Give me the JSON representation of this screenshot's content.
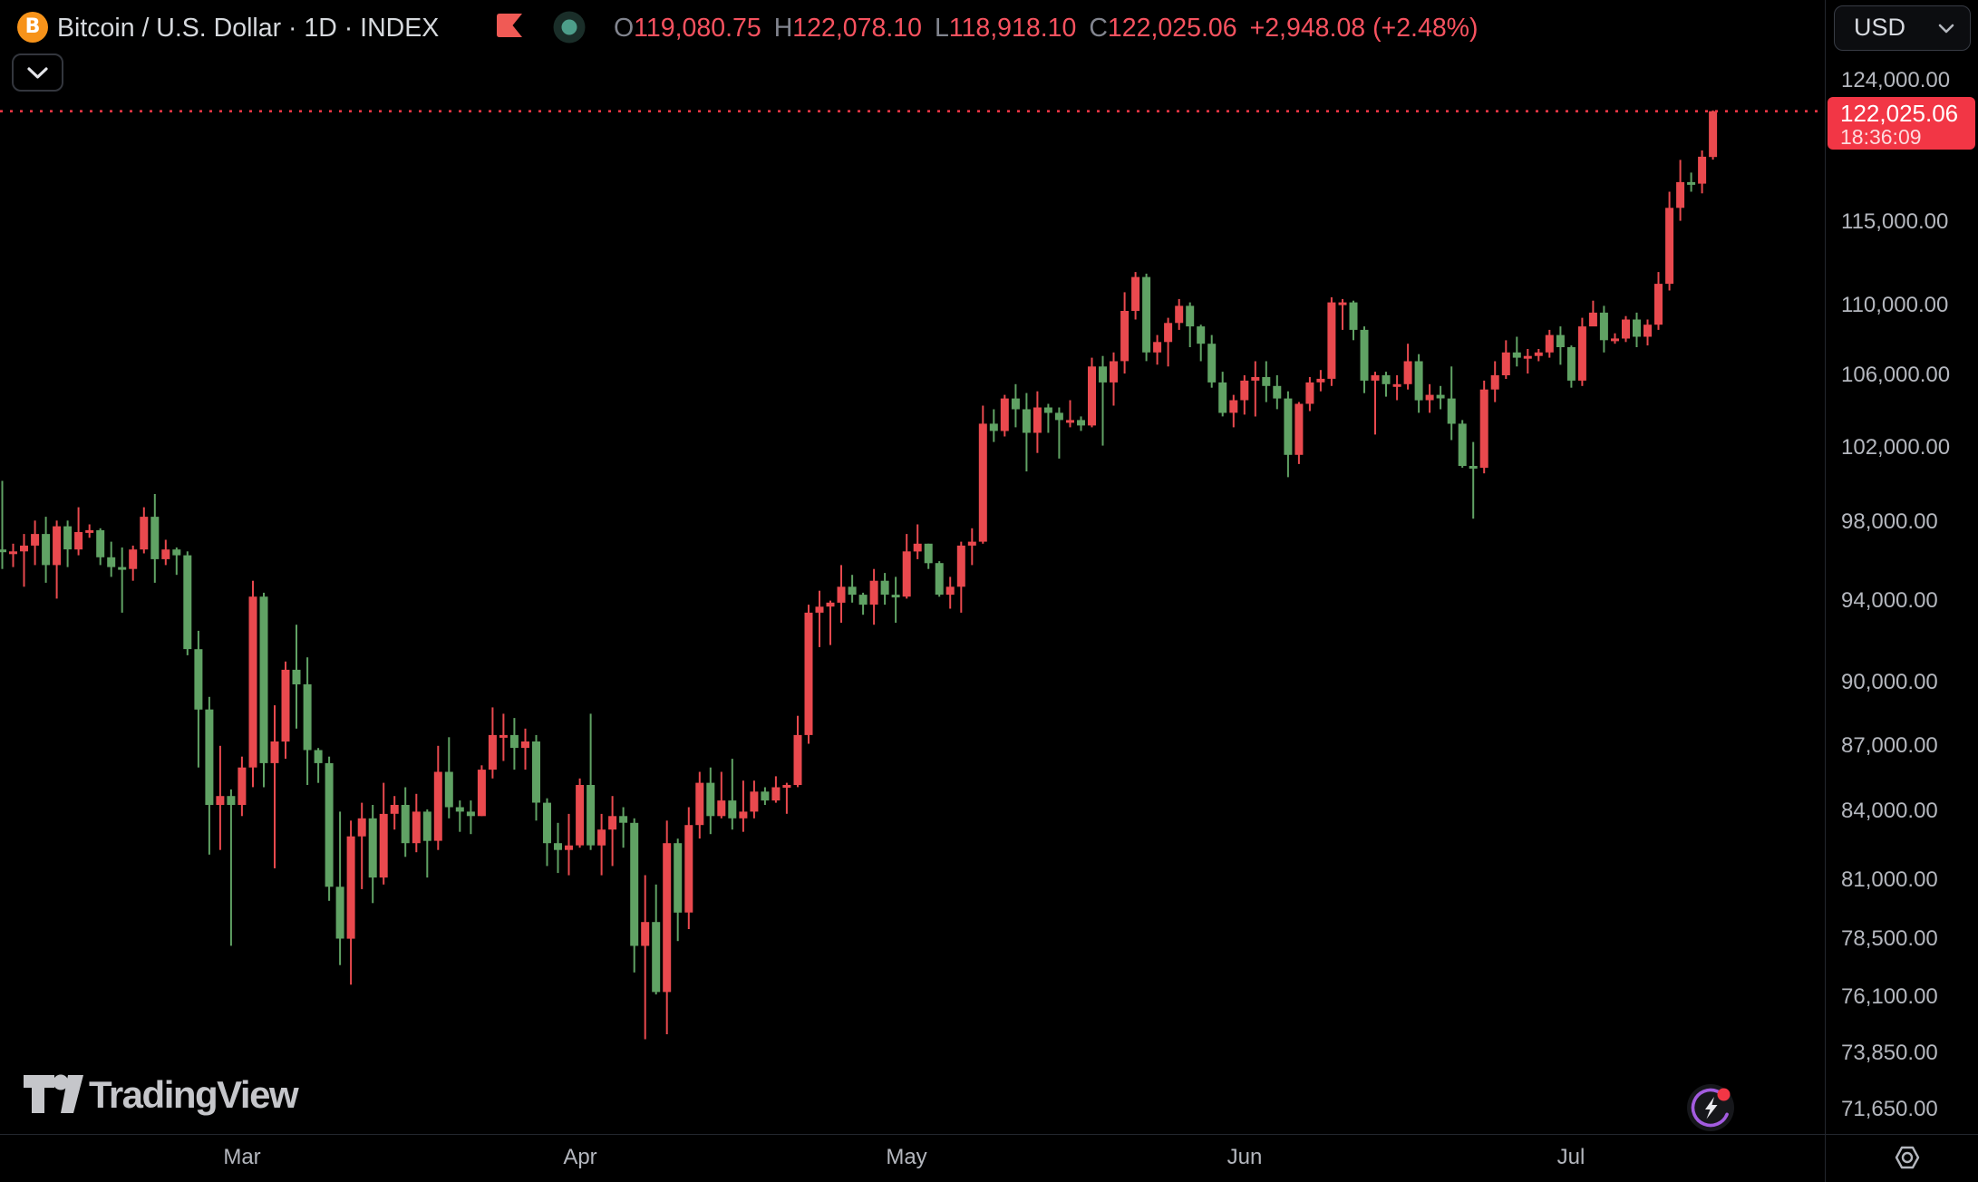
{
  "header": {
    "symbol_title": "Bitcoin / U.S. Dollar · 1D · INDEX",
    "logo_letter": "B",
    "ohlc": {
      "open_label": "O",
      "open_value": "119,080.75",
      "high_label": "H",
      "high_value": "122,078.10",
      "low_label": "L",
      "low_value": "118,918.10",
      "close_label": "C",
      "close_value": "122,025.06",
      "change_value": "+2,948.08 (+2.48%)"
    },
    "currency_button_label": "USD"
  },
  "price_tag": {
    "price": "122,025.06",
    "countdown": "18:36:09"
  },
  "watermark_text": "TradingView",
  "colors": {
    "background": "#000000",
    "up_candle": "#e9494e",
    "down_candle": "#60a264",
    "accent_red": "#f23645",
    "value_red": "#f7525f",
    "bitcoin_orange": "#f7931a",
    "axis_text": "#b4b7be",
    "title_text": "#d6d9dd",
    "market_dot": "#4d9e8a"
  },
  "chart_data": {
    "type": "candlestick",
    "title": "Bitcoin / U.S. Dollar 1D INDEX",
    "scale": "log",
    "legend_position": "none",
    "grid": false,
    "visible_price_range": [
      70830,
      129480
    ],
    "current_price": 122025.06,
    "price_axis_labels": [
      {
        "text": "124,000.00",
        "value": 124000
      },
      {
        "text": "115,000.00",
        "value": 115000
      },
      {
        "text": "110,000.00",
        "value": 110000
      },
      {
        "text": "106,000.00",
        "value": 106000
      },
      {
        "text": "102,000.00",
        "value": 102000
      },
      {
        "text": "98,000.00",
        "value": 98000
      },
      {
        "text": "94,000.00",
        "value": 94000
      },
      {
        "text": "90,000.00",
        "value": 90000
      },
      {
        "text": "87,000.00",
        "value": 87000
      },
      {
        "text": "84,000.00",
        "value": 84000
      },
      {
        "text": "81,000.00",
        "value": 81000
      },
      {
        "text": "78,500.00",
        "value": 78500
      },
      {
        "text": "76,100.00",
        "value": 76100
      },
      {
        "text": "73,850.00",
        "value": 73850
      },
      {
        "text": "71,650.00",
        "value": 71650
      }
    ],
    "time_axis_labels": [
      {
        "text": "Mar",
        "day_index": 22
      },
      {
        "text": "Apr",
        "day_index": 53
      },
      {
        "text": "May",
        "day_index": 83
      },
      {
        "text": "Jun",
        "day_index": 114
      },
      {
        "text": "Jul",
        "day_index": 144
      }
    ],
    "candle_columns": [
      "date",
      "open",
      "high",
      "low",
      "close"
    ],
    "candles": [
      [
        "Feb 7",
        96600,
        100200,
        95600,
        96500
      ],
      [
        "Feb 8",
        96500,
        96900,
        95700,
        96500
      ],
      [
        "Feb 9",
        96500,
        97400,
        94700,
        96800
      ],
      [
        "Feb 10",
        96800,
        98100,
        95800,
        97400
      ],
      [
        "Feb 11",
        97400,
        98300,
        94900,
        95800
      ],
      [
        "Feb 12",
        95800,
        98100,
        94100,
        97800
      ],
      [
        "Feb 13",
        97800,
        98100,
        95700,
        96600
      ],
      [
        "Feb 14",
        96600,
        98800,
        96300,
        97500
      ],
      [
        "Feb 15",
        97500,
        97900,
        97200,
        97600
      ],
      [
        "Feb 16",
        97600,
        97700,
        95800,
        96200
      ],
      [
        "Feb 17",
        96200,
        97000,
        95200,
        95700
      ],
      [
        "Feb 18",
        95700,
        96700,
        93400,
        95600
      ],
      [
        "Feb 19",
        95600,
        96800,
        95000,
        96600
      ],
      [
        "Feb 20",
        96600,
        98800,
        96400,
        98300
      ],
      [
        "Feb 21",
        98300,
        99500,
        94900,
        96100
      ],
      [
        "Feb 22",
        96100,
        97100,
        95800,
        96600
      ],
      [
        "Feb 23",
        96600,
        96700,
        95300,
        96300
      ],
      [
        "Feb 24",
        96300,
        96500,
        91300,
        91600
      ],
      [
        "Feb 25",
        91600,
        92500,
        86000,
        88700
      ],
      [
        "Feb 26",
        88700,
        89300,
        82100,
        84300
      ],
      [
        "Feb 27",
        84300,
        87000,
        82300,
        84700
      ],
      [
        "Feb 28",
        84700,
        85000,
        78200,
        84300
      ],
      [
        "Mar 1",
        84300,
        86500,
        83800,
        86000
      ],
      [
        "Mar 2",
        86000,
        95000,
        85100,
        94200
      ],
      [
        "Mar 3",
        94200,
        94400,
        85100,
        86200
      ],
      [
        "Mar 4",
        86200,
        88900,
        81500,
        87200
      ],
      [
        "Mar 5",
        87200,
        91000,
        86400,
        90600
      ],
      [
        "Mar 6",
        90600,
        92800,
        87800,
        89900
      ],
      [
        "Mar 7",
        89900,
        91200,
        85200,
        86800
      ],
      [
        "Mar 8",
        86800,
        86900,
        85300,
        86200
      ],
      [
        "Mar 9",
        86200,
        86500,
        80100,
        80700
      ],
      [
        "Mar 10",
        80700,
        84000,
        77400,
        78500
      ],
      [
        "Mar 11",
        78500,
        83600,
        76600,
        82900
      ],
      [
        "Mar 12",
        82900,
        84400,
        80600,
        83700
      ],
      [
        "Mar 13",
        83700,
        84300,
        80000,
        81100
      ],
      [
        "Mar 14",
        81100,
        85300,
        80800,
        83900
      ],
      [
        "Mar 15",
        83900,
        84700,
        83200,
        84300
      ],
      [
        "Mar 16",
        84300,
        85100,
        82000,
        82600
      ],
      [
        "Mar 17",
        82600,
        84800,
        82200,
        84000
      ],
      [
        "Mar 18",
        84000,
        84100,
        81100,
        82700
      ],
      [
        "Mar 19",
        82700,
        87000,
        82300,
        85800
      ],
      [
        "Mar 20",
        85800,
        87400,
        83700,
        84200
      ],
      [
        "Mar 21",
        84200,
        84500,
        83100,
        84000
      ],
      [
        "Mar 22",
        84000,
        84500,
        83000,
        83800
      ],
      [
        "Mar 23",
        83800,
        86100,
        83800,
        85900
      ],
      [
        "Mar 24",
        85900,
        88800,
        85500,
        87500
      ],
      [
        "Mar 25",
        87500,
        88500,
        86300,
        87500
      ],
      [
        "Mar 26",
        87500,
        88300,
        85900,
        86900
      ],
      [
        "Mar 27",
        86900,
        87800,
        85900,
        87200
      ],
      [
        "Mar 28",
        87200,
        87500,
        83600,
        84400
      ],
      [
        "Mar 29",
        84400,
        84600,
        81600,
        82600
      ],
      [
        "Mar 30",
        82600,
        83500,
        81300,
        82300
      ],
      [
        "Mar 31",
        82300,
        83900,
        81200,
        82500
      ],
      [
        "Apr 1",
        82500,
        85500,
        82400,
        85200
      ],
      [
        "Apr 2",
        85200,
        88500,
        82300,
        82500
      ],
      [
        "Apr 3",
        82500,
        83900,
        81200,
        83200
      ],
      [
        "Apr 4",
        83200,
        84700,
        81600,
        83800
      ],
      [
        "Apr 5",
        83800,
        84200,
        82400,
        83500
      ],
      [
        "Apr 6",
        83500,
        83700,
        77100,
        78200
      ],
      [
        "Apr 7",
        78200,
        81200,
        74400,
        79200
      ],
      [
        "Apr 8",
        79200,
        80800,
        76200,
        76300
      ],
      [
        "Apr 9",
        76300,
        83600,
        74600,
        82600
      ],
      [
        "Apr 10",
        82600,
        82800,
        78400,
        79600
      ],
      [
        "Apr 11",
        79600,
        84200,
        78900,
        83400
      ],
      [
        "Apr 12",
        83400,
        85800,
        82800,
        85300
      ],
      [
        "Apr 13",
        85300,
        86000,
        83000,
        83800
      ],
      [
        "Apr 14",
        83800,
        85800,
        83700,
        84500
      ],
      [
        "Apr 15",
        84500,
        86400,
        83200,
        83700
      ],
      [
        "Apr 16",
        83700,
        85400,
        83100,
        84000
      ],
      [
        "Apr 17",
        84000,
        85400,
        83700,
        84900
      ],
      [
        "Apr 18",
        84900,
        85100,
        84300,
        84500
      ],
      [
        "Apr 19",
        84500,
        85600,
        84400,
        85100
      ],
      [
        "Apr 20",
        85100,
        85300,
        83900,
        85200
      ],
      [
        "Apr 21",
        85200,
        88400,
        85100,
        87500
      ],
      [
        "Apr 22",
        87500,
        93800,
        87100,
        93400
      ],
      [
        "Apr 23",
        93400,
        94500,
        91700,
        93700
      ],
      [
        "Apr 24",
        93700,
        94000,
        91800,
        93900
      ],
      [
        "Apr 25",
        93900,
        95800,
        92900,
        94700
      ],
      [
        "Apr 26",
        94700,
        95300,
        93900,
        94300
      ],
      [
        "Apr 27",
        94300,
        94400,
        93300,
        93800
      ],
      [
        "Apr 28",
        93800,
        95600,
        92800,
        95000
      ],
      [
        "Apr 29",
        95000,
        95400,
        93800,
        94300
      ],
      [
        "Apr 30",
        94300,
        95200,
        92900,
        94200
      ],
      [
        "May 1",
        94200,
        97400,
        94100,
        96500
      ],
      [
        "May 2",
        96500,
        97900,
        96100,
        96900
      ],
      [
        "May 3",
        96900,
        96900,
        95600,
        95900
      ],
      [
        "May 4",
        95900,
        96000,
        94200,
        94300
      ],
      [
        "May 5",
        94300,
        95200,
        93600,
        94700
      ],
      [
        "May 6",
        94700,
        97000,
        93400,
        96800
      ],
      [
        "May 7",
        96800,
        97700,
        95800,
        97000
      ],
      [
        "May 8",
        97000,
        104300,
        96900,
        103300
      ],
      [
        "May 9",
        103300,
        104100,
        102300,
        102900
      ],
      [
        "May 10",
        102900,
        104900,
        102600,
        104700
      ],
      [
        "May 11",
        104700,
        105500,
        103100,
        104100
      ],
      [
        "May 12",
        104100,
        105000,
        100700,
        102800
      ],
      [
        "May 13",
        102800,
        105100,
        101700,
        104200
      ],
      [
        "May 14",
        104200,
        104400,
        102800,
        103900
      ],
      [
        "May 15",
        103900,
        104200,
        101400,
        103500
      ],
      [
        "May 16",
        103500,
        104600,
        103100,
        103500
      ],
      [
        "May 17",
        103500,
        103700,
        102900,
        103200
      ],
      [
        "May 18",
        103200,
        107000,
        103100,
        106500
      ],
      [
        "May 19",
        106500,
        107100,
        102100,
        105600
      ],
      [
        "May 20",
        105600,
        107300,
        104300,
        106800
      ],
      [
        "May 21",
        106800,
        110800,
        106100,
        109700
      ],
      [
        "May 22",
        109700,
        112000,
        109200,
        111700
      ],
      [
        "May 23",
        111700,
        111900,
        106800,
        107300
      ],
      [
        "May 24",
        107300,
        108300,
        106600,
        107900
      ],
      [
        "May 25",
        107900,
        109300,
        106500,
        109000
      ],
      [
        "May 26",
        109000,
        110400,
        108600,
        110000
      ],
      [
        "May 27",
        110000,
        110200,
        107600,
        108800
      ],
      [
        "May 28",
        108800,
        108900,
        106800,
        107800
      ],
      [
        "May 29",
        107800,
        108300,
        105300,
        105600
      ],
      [
        "May 30",
        105600,
        106200,
        103700,
        103900
      ],
      [
        "May 31",
        103900,
        104900,
        103100,
        104600
      ],
      [
        "Jun 1",
        104600,
        106000,
        103800,
        105700
      ],
      [
        "Jun 2",
        105700,
        106800,
        103700,
        105900
      ],
      [
        "Jun 3",
        105900,
        106800,
        104500,
        105400
      ],
      [
        "Jun 4",
        105400,
        106000,
        104100,
        104700
      ],
      [
        "Jun 5",
        104700,
        105100,
        100400,
        101600
      ],
      [
        "Jun 6",
        101600,
        104500,
        101100,
        104400
      ],
      [
        "Jun 7",
        104400,
        105900,
        104000,
        105600
      ],
      [
        "Jun 8",
        105600,
        106300,
        105100,
        105800
      ],
      [
        "Jun 9",
        105800,
        110500,
        105400,
        110200
      ],
      [
        "Jun 10",
        110200,
        110400,
        108600,
        110200
      ],
      [
        "Jun 11",
        110200,
        110300,
        108000,
        108600
      ],
      [
        "Jun 12",
        108600,
        108800,
        105000,
        105700
      ],
      [
        "Jun 13",
        105700,
        106200,
        102700,
        106000
      ],
      [
        "Jun 14",
        106000,
        106200,
        104800,
        105500
      ],
      [
        "Jun 15",
        105500,
        106000,
        104600,
        105500
      ],
      [
        "Jun 16",
        105500,
        107800,
        105200,
        106800
      ],
      [
        "Jun 17",
        106800,
        107200,
        103900,
        104600
      ],
      [
        "Jun 18",
        104600,
        105500,
        103900,
        104900
      ],
      [
        "Jun 19",
        104900,
        105400,
        104100,
        104700
      ],
      [
        "Jun 20",
        104700,
        106500,
        102400,
        103300
      ],
      [
        "Jun 21",
        103300,
        103500,
        100900,
        101000
      ],
      [
        "Jun 22",
        101000,
        102300,
        98200,
        100900
      ],
      [
        "Jun 23",
        100900,
        105700,
        100600,
        105200
      ],
      [
        "Jun 24",
        105200,
        106800,
        104500,
        106000
      ],
      [
        "Jun 25",
        106000,
        108000,
        105800,
        107300
      ],
      [
        "Jun 26",
        107300,
        108200,
        106500,
        107000
      ],
      [
        "Jun 27",
        107000,
        107500,
        106100,
        107100
      ],
      [
        "Jun 28",
        107100,
        107500,
        106800,
        107300
      ],
      [
        "Jun 29",
        107300,
        108600,
        107000,
        108300
      ],
      [
        "Jun 30",
        108300,
        108800,
        106600,
        107600
      ],
      [
        "Jul 1",
        107600,
        107700,
        105300,
        105700
      ],
      [
        "Jul 2",
        105700,
        109300,
        105400,
        108800
      ],
      [
        "Jul 3",
        108800,
        110300,
        108800,
        109600
      ],
      [
        "Jul 4",
        109600,
        110000,
        107300,
        108000
      ],
      [
        "Jul 5",
        108000,
        108400,
        107800,
        108100
      ],
      [
        "Jul 6",
        108100,
        109400,
        107900,
        109200
      ],
      [
        "Jul 7",
        109200,
        109600,
        107600,
        108200
      ],
      [
        "Jul 8",
        108200,
        109200,
        107700,
        108900
      ],
      [
        "Jul 9",
        108900,
        112000,
        108600,
        111300
      ],
      [
        "Jul 10",
        111300,
        116900,
        110900,
        115900
      ],
      [
        "Jul 11",
        115900,
        118900,
        115100,
        117500
      ],
      [
        "Jul 12",
        117500,
        118100,
        116900,
        117400
      ],
      [
        "Jul 13",
        117400,
        119500,
        116800,
        119100
      ],
      [
        "Jul 14",
        119080.75,
        122078.1,
        118918.1,
        122025.06
      ]
    ]
  }
}
